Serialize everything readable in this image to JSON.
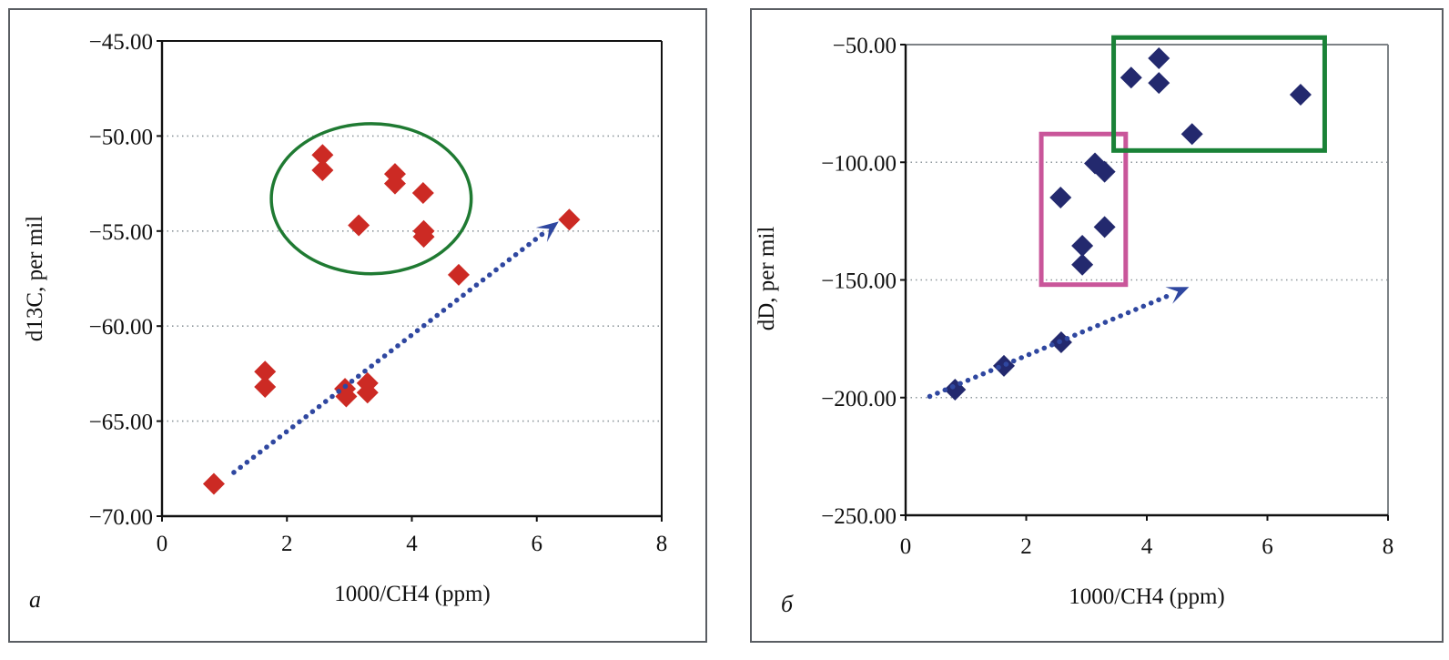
{
  "chart_data": [
    {
      "type": "scatter",
      "panel_label": "a",
      "title": "",
      "xlabel": "1000/CH4 (ppm)",
      "ylabel": "d13C, per mil",
      "xlim": [
        0,
        8
      ],
      "ylim": [
        -70,
        -45
      ],
      "xticks": [
        0,
        2,
        4,
        6,
        8
      ],
      "xtick_labels": [
        "0",
        "2",
        "4",
        "6",
        "8"
      ],
      "yticks": [
        -45,
        -50,
        -55,
        -60,
        -65,
        -70
      ],
      "ytick_labels": [
        "−45.00",
        "−50.00",
        "−55.00",
        "−60.00",
        "−65.00",
        "−70.00"
      ],
      "grid": "horizontal-dotted",
      "marker": "diamond",
      "marker_color": "#cc2a24",
      "points": [
        {
          "x": 0.83,
          "y": -68.3
        },
        {
          "x": 1.65,
          "y": -62.4
        },
        {
          "x": 1.65,
          "y": -63.2
        },
        {
          "x": 2.57,
          "y": -51.0
        },
        {
          "x": 2.57,
          "y": -51.8
        },
        {
          "x": 2.93,
          "y": -63.3
        },
        {
          "x": 2.95,
          "y": -63.7
        },
        {
          "x": 3.15,
          "y": -54.7
        },
        {
          "x": 3.29,
          "y": -63.0
        },
        {
          "x": 3.29,
          "y": -63.5
        },
        {
          "x": 3.73,
          "y": -52.0
        },
        {
          "x": 3.73,
          "y": -52.5
        },
        {
          "x": 4.18,
          "y": -53.0
        },
        {
          "x": 4.19,
          "y": -55.0
        },
        {
          "x": 4.19,
          "y": -55.3
        },
        {
          "x": 4.75,
          "y": -57.3
        },
        {
          "x": 6.52,
          "y": -54.4
        }
      ],
      "annotations": [
        {
          "kind": "ellipse",
          "color": "#1f7a32",
          "center": {
            "x": 3.35,
            "y": -53.3
          },
          "radius": {
            "x": 1.6,
            "y": 3.95
          }
        },
        {
          "kind": "arrow",
          "style": "dotted",
          "color": "#2f47a0",
          "from": {
            "x": 1.15,
            "y": -67.7
          },
          "to": {
            "x": 6.35,
            "y": -54.5
          }
        }
      ]
    },
    {
      "type": "scatter",
      "panel_label": "б",
      "title": "",
      "xlabel": "1000/CH4 (ppm)",
      "ylabel": "dD, per mil",
      "xlim": [
        0,
        8
      ],
      "ylim": [
        -250,
        -50
      ],
      "xticks": [
        0,
        2,
        4,
        6,
        8
      ],
      "xtick_labels": [
        "0",
        "2",
        "4",
        "6",
        "8"
      ],
      "yticks": [
        -50,
        -100,
        -150,
        -200,
        -250
      ],
      "ytick_labels": [
        "−50.00",
        "−100.00",
        "−150.00",
        "−200.00",
        "−250.00"
      ],
      "grid": "horizontal-dotted",
      "marker": "diamond",
      "marker_color": "#23296e",
      "points": [
        {
          "x": 0.82,
          "y": -196.6
        },
        {
          "x": 1.63,
          "y": -186.5
        },
        {
          "x": 2.58,
          "y": -176.5
        },
        {
          "x": 2.57,
          "y": -115.0
        },
        {
          "x": 2.93,
          "y": -135.5
        },
        {
          "x": 2.93,
          "y": -143.5
        },
        {
          "x": 3.14,
          "y": -100.5
        },
        {
          "x": 3.3,
          "y": -104.0
        },
        {
          "x": 3.3,
          "y": -127.5
        },
        {
          "x": 3.74,
          "y": -64.0
        },
        {
          "x": 4.2,
          "y": -55.8
        },
        {
          "x": 4.2,
          "y": -66.3
        },
        {
          "x": 4.75,
          "y": -88.0
        },
        {
          "x": 6.55,
          "y": -71.3
        }
      ],
      "annotations": [
        {
          "kind": "rect",
          "color": "#c9569a",
          "x_range": [
            2.25,
            3.65
          ],
          "y_range": [
            -152,
            -88
          ]
        },
        {
          "kind": "rect",
          "color": "#1a8237",
          "x_range": [
            3.45,
            6.95
          ],
          "y_range": [
            -95,
            -47
          ]
        },
        {
          "kind": "arrow",
          "style": "dotted",
          "color": "#2f47a0",
          "from": {
            "x": 0.4,
            "y": -199.5
          },
          "to": {
            "x": 4.7,
            "y": -153
          }
        }
      ]
    }
  ]
}
